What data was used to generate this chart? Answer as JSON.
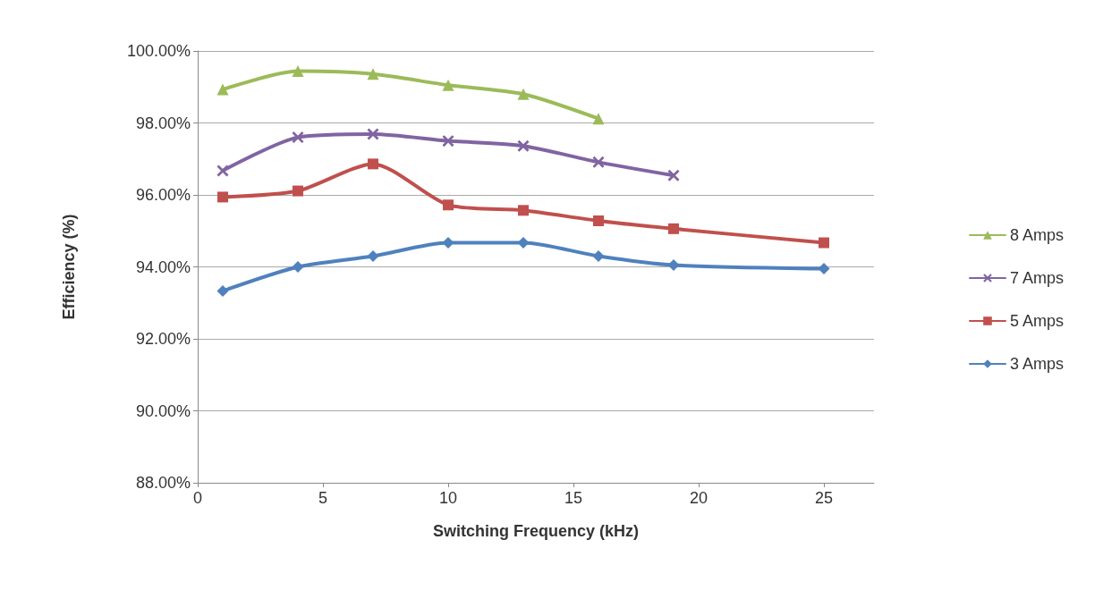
{
  "chart_data": {
    "type": "line",
    "xlabel": "Switching Frequency (kHz)",
    "ylabel": "Efficiency (%)",
    "xlim": [
      0,
      27
    ],
    "xticks": [
      0,
      5,
      10,
      15,
      20,
      25
    ],
    "ylim": [
      88,
      100
    ],
    "yticks": [
      {
        "value": 88,
        "label": "88.00%"
      },
      {
        "value": 90,
        "label": "90.00%"
      },
      {
        "value": 92,
        "label": "92.00%"
      },
      {
        "value": 94,
        "label": "94.00%"
      },
      {
        "value": 96,
        "label": "96.00%"
      },
      {
        "value": 98,
        "label": "98.00%"
      },
      {
        "value": 100,
        "label": "100.00%"
      }
    ],
    "grid": "y",
    "legend": "right",
    "line_style": "solid",
    "series": [
      {
        "name": "8 Amps",
        "color": "#9bbb59",
        "marker": "triangle",
        "x": [
          1,
          4,
          7,
          10,
          13,
          16
        ],
        "values": [
          98.93,
          99.44,
          99.36,
          99.05,
          98.8,
          98.12
        ]
      },
      {
        "name": "7 Amps",
        "color": "#8064a2",
        "marker": "cross",
        "x": [
          1,
          4,
          7,
          10,
          13,
          16,
          19
        ],
        "values": [
          96.67,
          97.6,
          97.69,
          97.5,
          97.36,
          96.91,
          96.54
        ]
      },
      {
        "name": "5 Amps",
        "color": "#c0504d",
        "marker": "square",
        "x": [
          1,
          4,
          7,
          10,
          13,
          16,
          19,
          25
        ],
        "values": [
          95.94,
          96.11,
          96.86,
          95.72,
          95.57,
          95.28,
          95.06,
          94.67
        ]
      },
      {
        "name": "3 Amps",
        "color": "#4f81bd",
        "marker": "diamond",
        "x": [
          1,
          4,
          7,
          10,
          13,
          16,
          19,
          25
        ],
        "values": [
          93.33,
          94.0,
          94.3,
          94.67,
          94.67,
          94.3,
          94.05,
          93.95
        ]
      }
    ]
  }
}
